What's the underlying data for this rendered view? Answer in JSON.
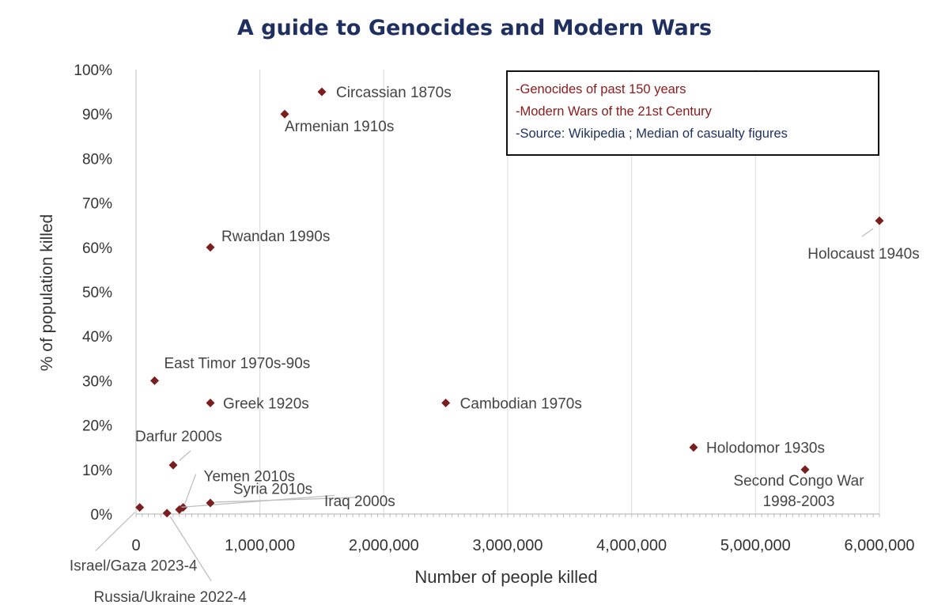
{
  "chart_data": {
    "type": "scatter",
    "title": "A guide to Genocides and Modern Wars",
    "xlabel": "Number of people killed",
    "ylabel": "% of population killed",
    "xlim": [
      0,
      6000000
    ],
    "ylim": [
      0,
      100
    ],
    "x_ticks": [
      0,
      1000000,
      2000000,
      3000000,
      4000000,
      5000000,
      6000000
    ],
    "x_tick_labels": [
      "0",
      "1,000,000",
      "2,000,000",
      "3,000,000",
      "4,000,000",
      "5,000,000",
      "6,000,000"
    ],
    "y_ticks": [
      0,
      10,
      20,
      30,
      40,
      50,
      60,
      70,
      80,
      90,
      100
    ],
    "y_tick_labels": [
      "0%",
      "10%",
      "20%",
      "30%",
      "40%",
      "50%",
      "60%",
      "70%",
      "80%",
      "90%",
      "100%"
    ],
    "grid": "vertical",
    "marker_color": "#7a1f1f",
    "points": [
      {
        "label": "Circassian 1870s",
        "x": 1500000,
        "y": 95
      },
      {
        "label": "Armenian 1910s",
        "x": 1200000,
        "y": 90
      },
      {
        "label": "Rwandan 1990s",
        "x": 600000,
        "y": 60
      },
      {
        "label": "Holocaust 1940s",
        "x": 6000000,
        "y": 66
      },
      {
        "label": "East Timor 1970s-90s",
        "x": 150000,
        "y": 30
      },
      {
        "label": "Greek 1920s",
        "x": 600000,
        "y": 25
      },
      {
        "label": "Cambodian 1970s",
        "x": 2500000,
        "y": 25
      },
      {
        "label": "Darfur 2000s",
        "x": 300000,
        "y": 11
      },
      {
        "label": "Holodomor 1930s",
        "x": 4500000,
        "y": 15
      },
      {
        "label": "Second Congo War 1998-2003",
        "x": 5400000,
        "y": 10
      },
      {
        "label": "Yemen 2010s",
        "x": 380000,
        "y": 1.5
      },
      {
        "label": "Syria 2010s",
        "x": 350000,
        "y": 1
      },
      {
        "label": "Iraq 2000s",
        "x": 600000,
        "y": 2.5
      },
      {
        "label": "Israel/Gaza 2023-4",
        "x": 30000,
        "y": 1.5
      },
      {
        "label": "Russia/Ukraine 2022-4",
        "x": 250000,
        "y": 0.2
      }
    ],
    "legend": {
      "placement": "top-right",
      "items": [
        {
          "text": "-Genocides of past 150 years",
          "color": "#8b1a1a"
        },
        {
          "text": "-Modern Wars of the 21st Century",
          "color": "#8b1a1a"
        },
        {
          "text": "-Source: Wikipedia ; Median of casualty figures",
          "color": "#1f2f5f"
        }
      ]
    }
  }
}
